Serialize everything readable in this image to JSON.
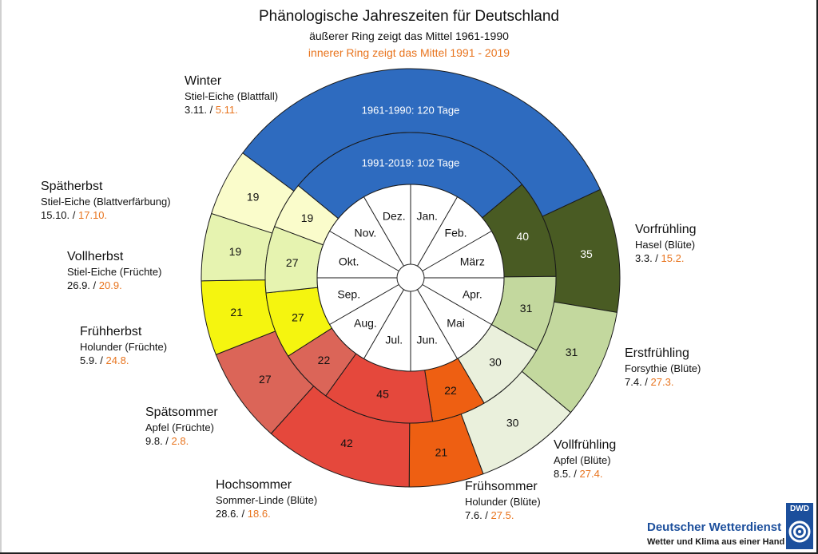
{
  "header": {
    "title": "Phänologische Jahreszeiten für Deutschland",
    "subtitle": "äußerer Ring zeigt das Mittel 1961-1990",
    "subtitle2": "innerer Ring zeigt das Mittel 1991 - 2019"
  },
  "colors": {
    "accent_orange": "#e8741e",
    "winter": "#2e6bbf",
    "vorfruehling": "#495b23",
    "erstfruehling": "#c3d89e",
    "vollfruehling": "#eaf0dc",
    "fruehsommer": "#ee5f12",
    "hochsommer": "#e5483c",
    "spaetsommer": "#db6558",
    "fruehherbst": "#f5f50f",
    "vollherbst": "#e6f3b0",
    "spaetherbst": "#fafccb"
  },
  "chart_data": {
    "type": "donut",
    "outer_ring": {
      "period": "1961-1990",
      "segments": [
        {
          "season": "Vorfrühling",
          "days": 35
        },
        {
          "season": "Erstfrühling",
          "days": 31
        },
        {
          "season": "Vollfrühling",
          "days": 30
        },
        {
          "season": "Frühsommer",
          "days": 21
        },
        {
          "season": "Hochsommer",
          "days": 42
        },
        {
          "season": "Spätsommer",
          "days": 27
        },
        {
          "season": "Frühherbst",
          "days": 21
        },
        {
          "season": "Vollherbst",
          "days": 19
        },
        {
          "season": "Spätherbst",
          "days": 19
        },
        {
          "season": "Winter",
          "days": 120
        }
      ],
      "winter_label": "1961-1990: 120 Tage"
    },
    "inner_ring": {
      "period": "1991-2019",
      "segments": [
        {
          "season": "Vorfrühling",
          "days": 40
        },
        {
          "season": "Erstfrühling",
          "days": 31
        },
        {
          "season": "Vollfrühling",
          "days": 30
        },
        {
          "season": "Frühsommer",
          "days": 22
        },
        {
          "season": "Hochsommer",
          "days": 45
        },
        {
          "season": "Spätsommer",
          "days": 22
        },
        {
          "season": "Frühherbst",
          "days": 27
        },
        {
          "season": "Vollherbst",
          "days": 27
        },
        {
          "season": "Spätherbst",
          "days": 19
        },
        {
          "season": "Winter",
          "days": 102
        }
      ],
      "winter_label": "1991-2019: 102 Tage"
    },
    "months": [
      "Jan.",
      "Feb.",
      "März",
      "Apr.",
      "Mai",
      "Jun.",
      "Jul.",
      "Aug.",
      "Sep.",
      "Okt.",
      "Nov.",
      "Dez."
    ]
  },
  "seasons": [
    {
      "id": "winter",
      "name": "Winter",
      "plant": "Stiel-Eiche (Blattfall)",
      "date_old": "3.11.",
      "date_new": "5.11."
    },
    {
      "id": "spaetherbst",
      "name": "Spätherbst",
      "plant": "Stiel-Eiche (Blattverfärbung)",
      "date_old": "15.10.",
      "date_new": "17.10."
    },
    {
      "id": "vollherbst",
      "name": "Vollherbst",
      "plant": "Stiel-Eiche (Früchte)",
      "date_old": "26.9.",
      "date_new": "20.9."
    },
    {
      "id": "fruehherbst",
      "name": "Frühherbst",
      "plant": "Holunder (Früchte)",
      "date_old": "5.9.",
      "date_new": "24.8."
    },
    {
      "id": "spaetsommer",
      "name": "Spätsommer",
      "plant": "Apfel (Früchte)",
      "date_old": "9.8.",
      "date_new": "2.8."
    },
    {
      "id": "hochsommer",
      "name": "Hochsommer",
      "plant": "Sommer-Linde (Blüte)",
      "date_old": "28.6.",
      "date_new": "18.6."
    },
    {
      "id": "fruehsommer",
      "name": "Frühsommer",
      "plant": "Holunder (Blüte)",
      "date_old": "7.6.",
      "date_new": "27.5."
    },
    {
      "id": "vollfruehling",
      "name": "Vollfrühling",
      "plant": "Apfel (Blüte)",
      "date_old": "8.5.",
      "date_new": "27.4."
    },
    {
      "id": "erstfruehling",
      "name": "Erstfrühling",
      "plant": "Forsythie (Blüte)",
      "date_old": "7.4.",
      "date_new": "27.3."
    },
    {
      "id": "vorfruehling",
      "name": "Vorfrühling",
      "plant": "Hasel (Blüte)",
      "date_old": "3.3.",
      "date_new": "15.2."
    }
  ],
  "logo": {
    "box_text": "DWD",
    "name": "Deutscher Wetterdienst",
    "slogan": "Wetter und Klima aus einer Hand"
  }
}
